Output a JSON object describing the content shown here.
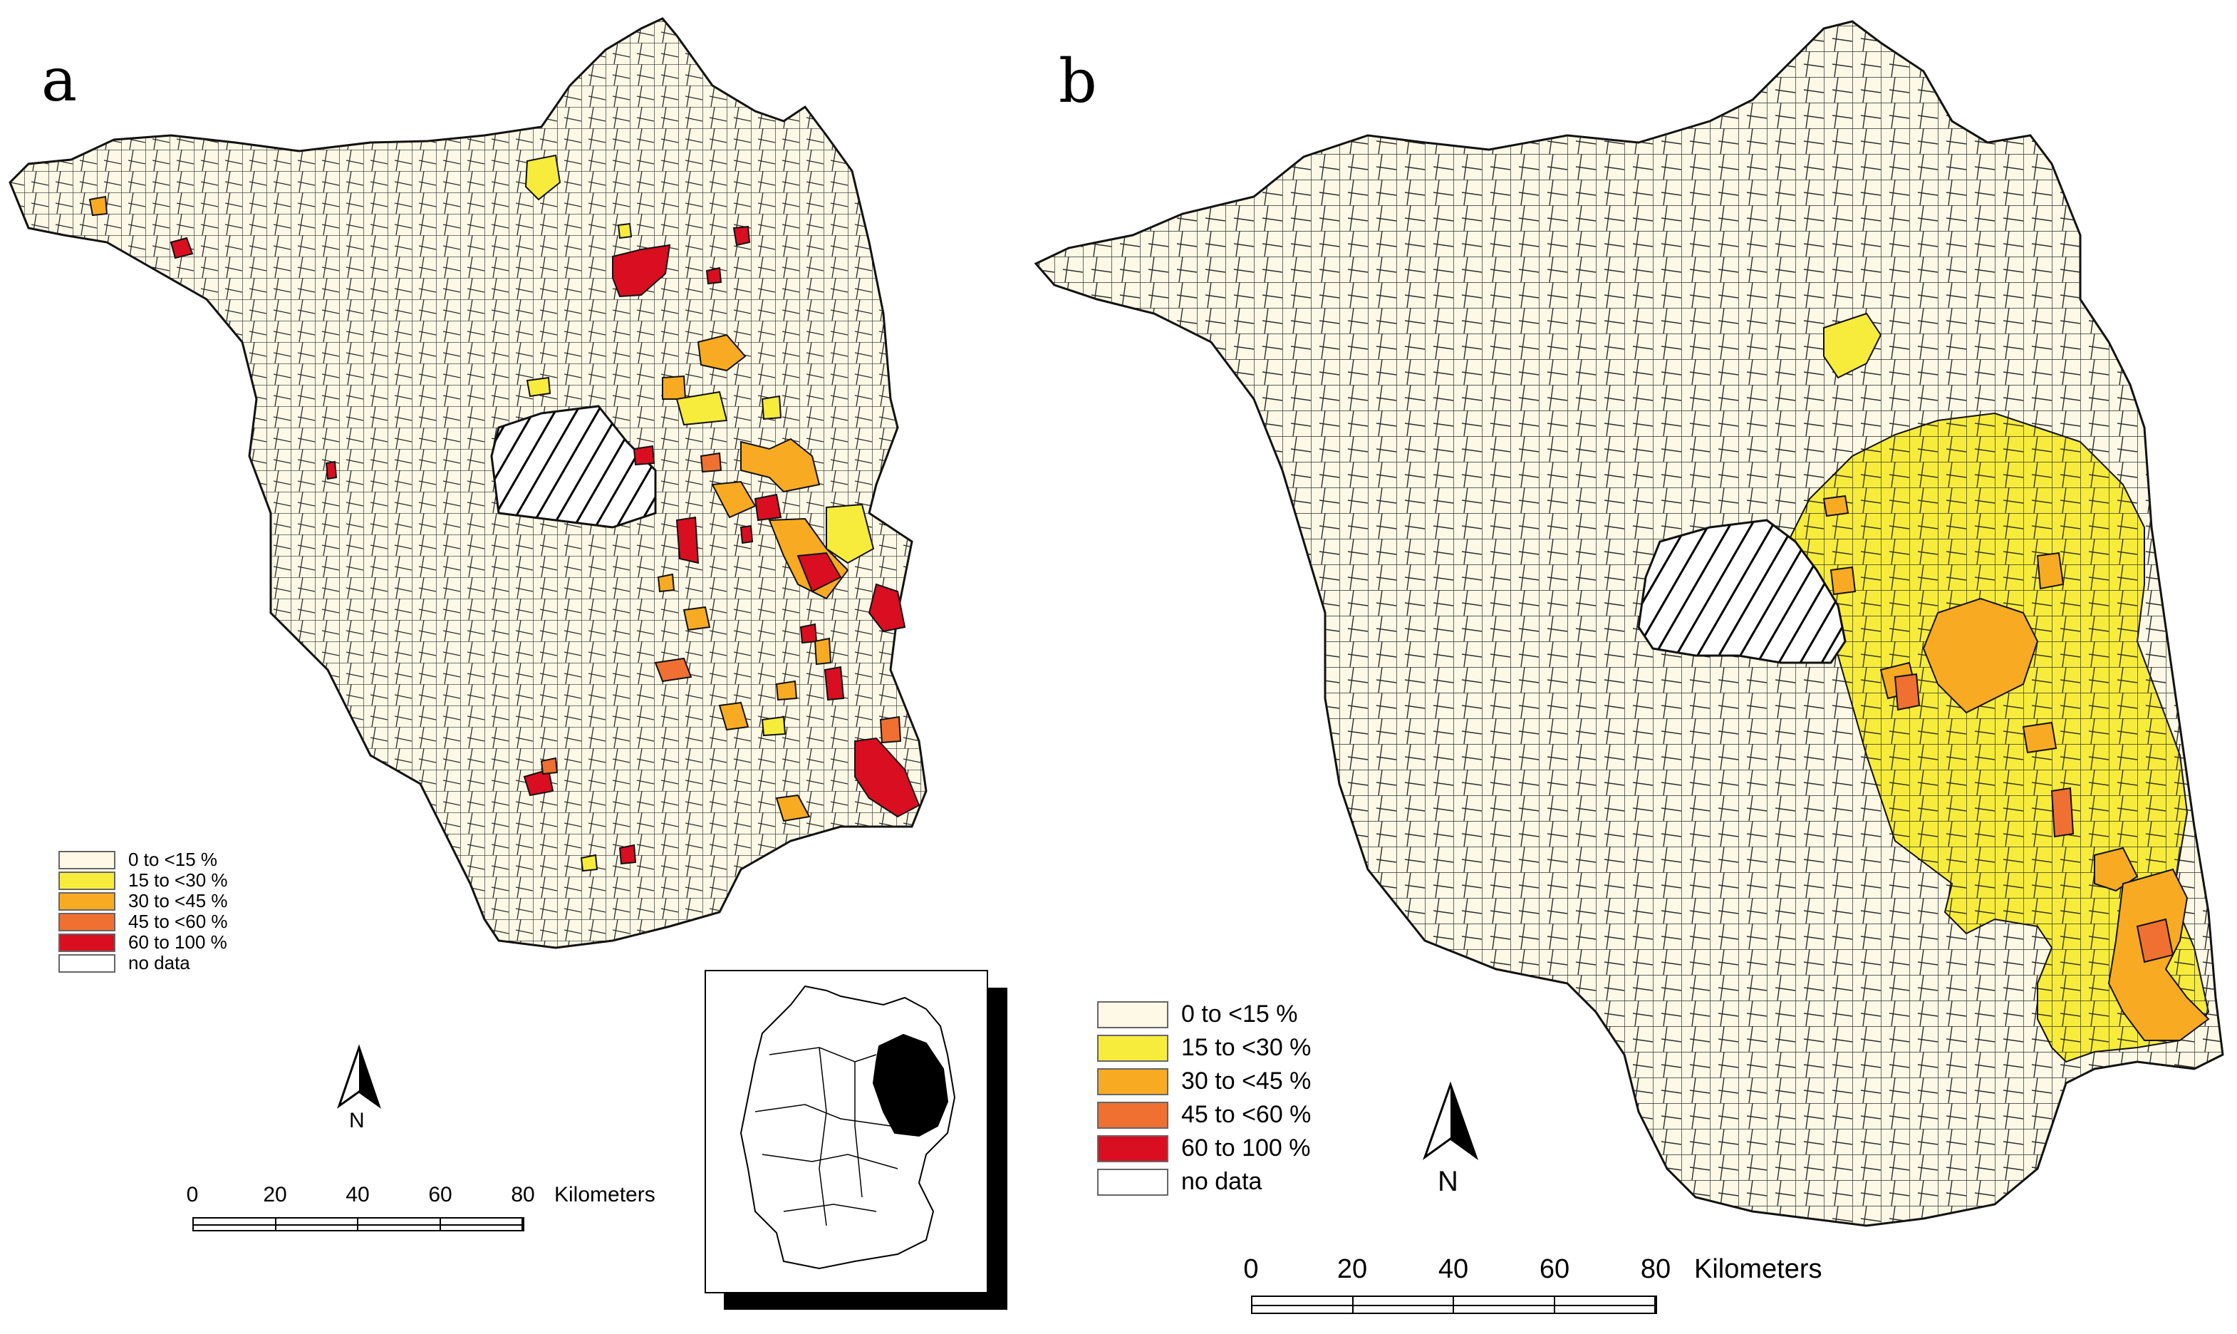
{
  "panels": [
    {
      "id": "a",
      "label": "a",
      "legend_items": [
        {
          "label": "0 to <15 %",
          "color": "#fdf9e6"
        },
        {
          "label": "15 to <30 %",
          "color": "#f7ec3c"
        },
        {
          "label": "30 to <45 %",
          "color": "#f8ab22"
        },
        {
          "label": "45 to <60 %",
          "color": "#f07032"
        },
        {
          "label": "60 to 100 %",
          "color": "#d90e21"
        },
        {
          "label": "no data",
          "color": "#ffffff"
        }
      ],
      "north_label": "N",
      "scale": {
        "ticks": [
          "0",
          "20",
          "40",
          "60",
          "80"
        ],
        "unit": "Kilometers"
      },
      "has_inset_germany_map": true
    },
    {
      "id": "b",
      "label": "b",
      "legend_items": [
        {
          "label": "0 to <15 %",
          "color": "#fdf9e6"
        },
        {
          "label": "15 to <30 %",
          "color": "#f7ec3c"
        },
        {
          "label": "30 to <45 %",
          "color": "#f8ab22"
        },
        {
          "label": "45 to <60 %",
          "color": "#f07032"
        },
        {
          "label": "60 to 100 %",
          "color": "#d90e21"
        },
        {
          "label": "no data",
          "color": "#ffffff"
        }
      ],
      "north_label": "N",
      "scale": {
        "ticks": [
          "0",
          "20",
          "40",
          "60",
          "80"
        ],
        "unit": "Kilometers"
      }
    }
  ],
  "hatched_area_meaning": "excluded region (hatched)",
  "colors": {
    "base_fill": "#fdf9e6",
    "boundary": "#111111",
    "inset_highlight": "#000000"
  }
}
